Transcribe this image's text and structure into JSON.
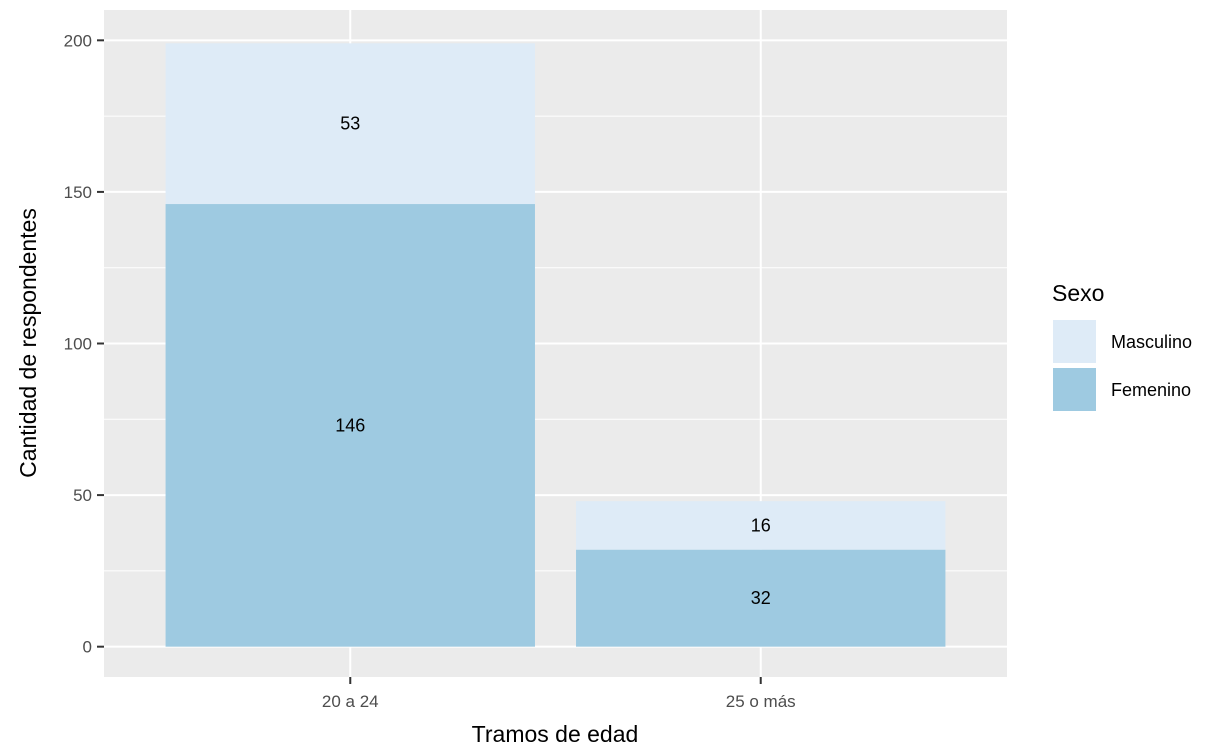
{
  "chart_data": {
    "type": "bar",
    "stacked": true,
    "categories": [
      "20 a 24",
      "25 o más"
    ],
    "series": [
      {
        "name": "Femenino",
        "values": [
          146,
          32
        ],
        "color": "#9ECAE1"
      },
      {
        "name": "Masculino",
        "values": [
          53,
          16
        ],
        "color": "#DEEBF7"
      }
    ],
    "xlabel": "Tramos de edad",
    "ylabel": "Cantidad de respondentes",
    "ylim": [
      -10,
      210
    ],
    "yticks": [
      0,
      50,
      100,
      150,
      200
    ],
    "grid": true,
    "legend": {
      "title": "Sexo",
      "placement": "right",
      "order": [
        "Masculino",
        "Femenino"
      ]
    },
    "colors": {
      "panel_background": "#EBEBEB",
      "gridline": "#FFFFFF",
      "tick": "#333333"
    }
  }
}
